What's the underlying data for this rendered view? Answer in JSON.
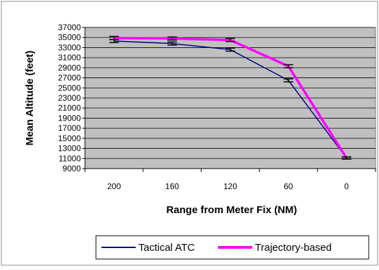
{
  "chart_data": {
    "type": "line",
    "title": "",
    "xlabel": "Range from Meter Fix (NM)",
    "ylabel": "Mean Altitude (feet)",
    "categories": [
      "200",
      "160",
      "120",
      "60",
      "0"
    ],
    "ylim": [
      9000,
      37000
    ],
    "yticks": [
      9000,
      11000,
      13000,
      15000,
      17000,
      19000,
      21000,
      23000,
      25000,
      27000,
      29000,
      31000,
      33000,
      35000,
      37000
    ],
    "grid": true,
    "legend_position": "bottom",
    "error_bars": true,
    "series": [
      {
        "name": "Tactical ATC",
        "color": "#000080",
        "values": [
          34300,
          33800,
          32600,
          26500,
          11100
        ],
        "error": [
          300,
          300,
          300,
          300,
          200
        ]
      },
      {
        "name": "Trajectory-based",
        "color": "#ff00ff",
        "values": [
          34900,
          34800,
          34500,
          29300,
          11100
        ],
        "error": [
          300,
          300,
          300,
          300,
          200
        ]
      }
    ]
  },
  "colors": {
    "plot_background": "#c0c0c0",
    "gridline": "#000000",
    "error_bar": "#000000"
  }
}
